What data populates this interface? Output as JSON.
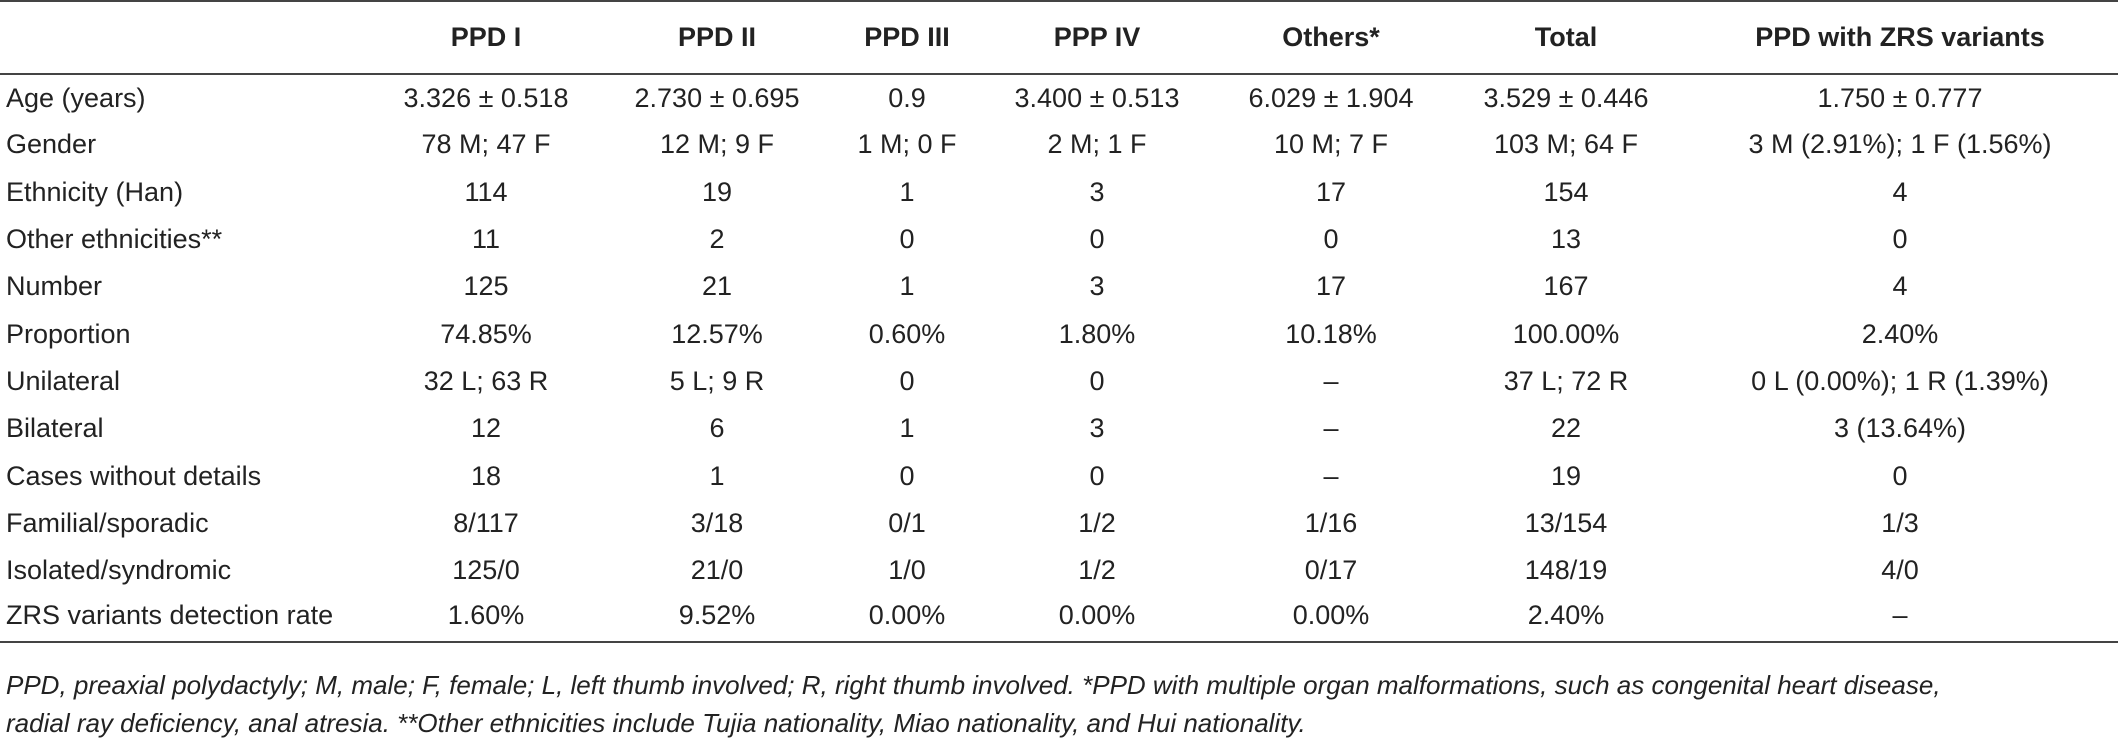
{
  "table": {
    "headers": [
      "",
      "PPD I",
      "PPD II",
      "PPD III",
      "PPP IV",
      "Others*",
      "Total",
      "PPD with ZRS variants"
    ],
    "rows": [
      [
        "Age (years)",
        "3.326 ± 0.518",
        "2.730 ± 0.695",
        "0.9",
        "3.400 ± 0.513",
        "6.029 ± 1.904",
        "3.529 ± 0.446",
        "1.750 ± 0.777"
      ],
      [
        "Gender",
        "78 M; 47 F",
        "12 M; 9 F",
        "1 M; 0 F",
        "2 M; 1 F",
        "10 M; 7 F",
        "103 M; 64 F",
        "3 M (2.91%); 1 F (1.56%)"
      ],
      [
        "Ethnicity (Han)",
        "114",
        "19",
        "1",
        "3",
        "17",
        "154",
        "4"
      ],
      [
        "Other ethnicities**",
        "11",
        "2",
        "0",
        "0",
        "0",
        "13",
        "0"
      ],
      [
        "Number",
        "125",
        "21",
        "1",
        "3",
        "17",
        "167",
        "4"
      ],
      [
        "Proportion",
        "74.85%",
        "12.57%",
        "0.60%",
        "1.80%",
        "10.18%",
        "100.00%",
        "2.40%"
      ],
      [
        "Unilateral",
        "32 L; 63 R",
        "5 L; 9 R",
        "0",
        "0",
        "–",
        "37 L; 72 R",
        "0 L (0.00%); 1 R (1.39%)"
      ],
      [
        "Bilateral",
        "12",
        "6",
        "1",
        "3",
        "–",
        "22",
        "3 (13.64%)"
      ],
      [
        "Cases without details",
        "18",
        "1",
        "0",
        "0",
        "–",
        "19",
        "0"
      ],
      [
        "Familial/sporadic",
        "8/117",
        "3/18",
        "0/1",
        "1/2",
        "1/16",
        "13/154",
        "1/3"
      ],
      [
        "Isolated/syndromic",
        "125/0",
        "21/0",
        "1/0",
        "1/2",
        "0/17",
        "148/19",
        "4/0"
      ],
      [
        "ZRS variants detection rate",
        "1.60%",
        "9.52%",
        "0.00%",
        "0.00%",
        "0.00%",
        "2.40%",
        "–"
      ]
    ]
  },
  "footnote": {
    "line1": "PPD, preaxial polydactyly; M, male; F, female; L, left thumb involved; R, right thumb involved. *PPD with multiple organ malformations, such as congenital heart disease,",
    "line2": "radial ray deficiency, anal atresia. **Other ethnicities include Tujia nationality, Miao nationality, and Hui nationality."
  }
}
